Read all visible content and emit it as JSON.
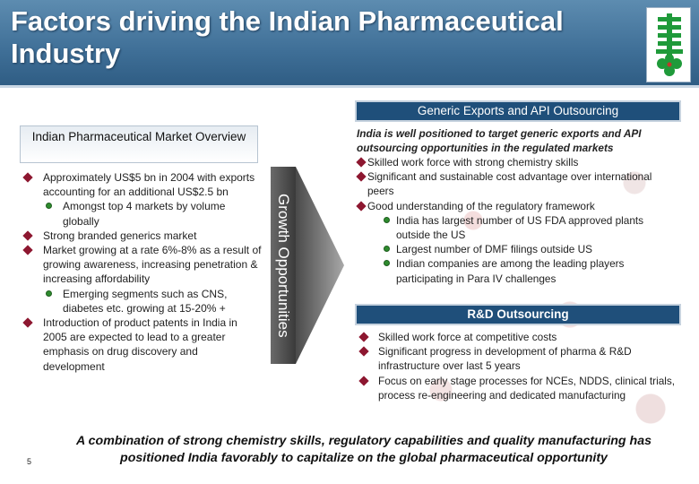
{
  "header": {
    "title": "Factors driving the Indian Pharmaceutical Industry",
    "logo_icon": "company-logo-icon"
  },
  "left": {
    "heading": "Indian Pharmaceutical  Market Overview",
    "items": [
      {
        "level": 1,
        "text": "Approximately US$5 bn in 2004 with exports accounting for an additional US$2.5 bn"
      },
      {
        "level": 2,
        "text": "Amongst top 4 markets by  volume globally"
      },
      {
        "level": 1,
        "text": "Strong branded generics market"
      },
      {
        "level": 1,
        "text": "Market growing at a rate 6%-8% as a result of growing awareness, increasing penetration & increasing affordability"
      },
      {
        "level": 2,
        "text": "Emerging segments such as CNS, diabetes etc. growing at 15-20% +"
      },
      {
        "level": 1,
        "text": "Introduction of product patents in India in 2005 are expected to lead to a greater emphasis on drug discovery and development"
      }
    ]
  },
  "growth_label": "Growth Opportunities",
  "right": {
    "heading": "Generic Exports and API Outsourcing",
    "intro": "India is well positioned to target generic exports and API outsourcing opportunities in the regulated markets",
    "items": [
      {
        "level": 1,
        "text": "Skilled work force with strong chemistry skills"
      },
      {
        "level": 1,
        "text": "Significant and sustainable cost advantage over international peers"
      },
      {
        "level": 1,
        "text": "Good understanding of the regulatory framework"
      },
      {
        "level": 2,
        "text": "India has largest number of US FDA approved plants outside the US"
      },
      {
        "level": 2,
        "text": "Largest number of DMF filings outside US"
      },
      {
        "level": 2,
        "text": "Indian companies are among the leading players participating in Para IV challenges"
      }
    ]
  },
  "rd": {
    "heading": "R&D Outsourcing",
    "items": [
      "Skilled work force at competitive costs",
      "Significant progress in development of pharma & R&D infrastructure over last 5 years",
      "Focus on early stage processes for NCEs, NDDS, clinical trials, process re-engineering and dedicated manufacturing"
    ]
  },
  "footer": "A combination of strong chemistry skills, regulatory capabilities and quality manufacturing has positioned India favorably to capitalize on the global pharmaceutical opportunity",
  "page_number": "5",
  "colors": {
    "header": "#3f6f97",
    "heading_bar": "#1f4f7a",
    "bullet_diamond": "#8d1730",
    "bullet_dot": "#2e8b2e",
    "logo_green": "#1f9a3a"
  }
}
